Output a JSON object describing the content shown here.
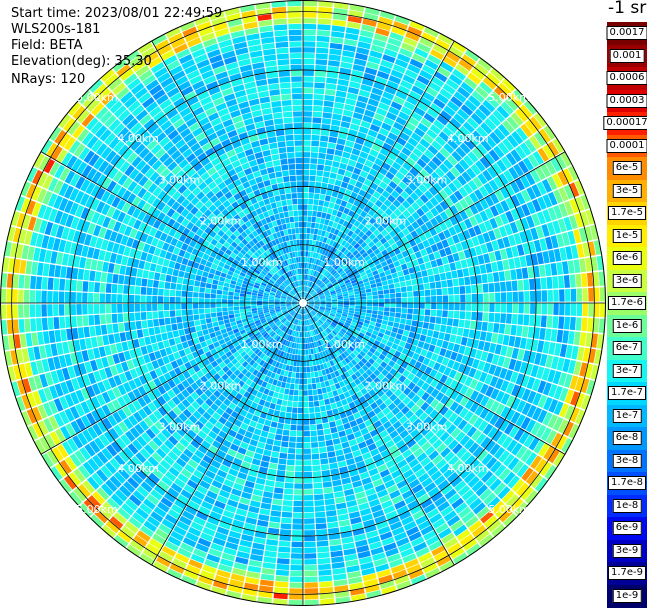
{
  "info": {
    "start_time": "Start time: 2023/08/01 22:49:59",
    "instrument": "WLS200s-181",
    "field": "Field: BETA",
    "elevation": "Elevation(deg): 35.30",
    "nrays": "NRays: 120"
  },
  "colorbar": {
    "unit_label": "-1 sr",
    "labels": [
      "0.0017",
      "0.001",
      "0.0006",
      "0.0003",
      "0.00017",
      "0.0001",
      "6e-5",
      "3e-5",
      "1.7e-5",
      "1e-5",
      "6e-6",
      "3e-6",
      "1.7e-6",
      "1e-6",
      "6e-7",
      "3e-7",
      "1.7e-7",
      "1e-7",
      "6e-8",
      "3e-8",
      "1.7e-8",
      "1e-8",
      "6e-9",
      "3e-9",
      "1.7e-9",
      "1e-9"
    ],
    "colors": [
      "#7a0000",
      "#9a0000",
      "#c00000",
      "#e00000",
      "#ff2000",
      "#ff5a00",
      "#ff8c00",
      "#ffb000",
      "#ffd400",
      "#ffee00",
      "#eaff10",
      "#c8ff40",
      "#9cff6a",
      "#6cff98",
      "#40ffc8",
      "#18f4f0",
      "#00d8ff",
      "#00b8ff",
      "#0098ff",
      "#0074ff",
      "#0050ff",
      "#002cff",
      "#0008f0",
      "#0000c4",
      "#000096",
      "#00006a"
    ]
  },
  "chart_data": {
    "type": "heatmap",
    "projection": "polar-ppi",
    "field": "BETA",
    "nrays": 120,
    "max_range_km": 5.2,
    "range_ring_labels_km": [
      "1.00km",
      "2.00km",
      "3.00km",
      "4.00km",
      "5.00km"
    ],
    "range_rings_km": [
      1,
      2,
      3,
      4,
      5
    ],
    "radial_line_spacing_deg": 30,
    "value_scale": "log",
    "value_range": [
      1e-09,
      0.0017
    ],
    "approx_beta_by_range": [
      {
        "range_km": 0.5,
        "beta": 1e-07
      },
      {
        "range_km": 1.5,
        "beta": 1.2e-07
      },
      {
        "range_km": 2.5,
        "beta": 1.5e-07
      },
      {
        "range_km": 3.5,
        "beta": 2e-07
      },
      {
        "range_km": 4.5,
        "beta": 1.5e-07
      },
      {
        "range_km": 5.0,
        "beta": 1.7e-06
      }
    ]
  }
}
